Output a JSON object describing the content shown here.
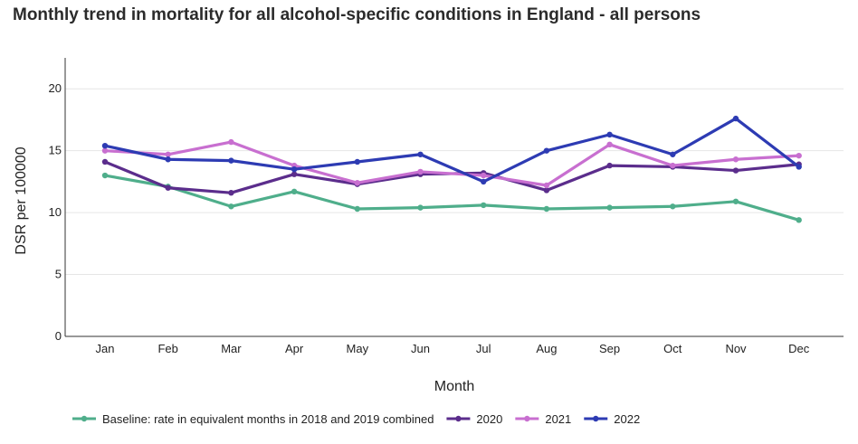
{
  "title": "Monthly trend in mortality for all alcohol-specific conditions in England - all persons",
  "chart_data": {
    "type": "line",
    "title": "Monthly trend in mortality for all alcohol-specific conditions in England - all persons",
    "xlabel": "Month",
    "ylabel": "DSR per 100000",
    "ylim": [
      0,
      22.5
    ],
    "yticks": [
      0,
      5,
      10,
      15,
      20
    ],
    "grid": true,
    "legend_position": "bottom",
    "categories": [
      "Jan",
      "Feb",
      "Mar",
      "Apr",
      "May",
      "Jun",
      "Jul",
      "Aug",
      "Sep",
      "Oct",
      "Nov",
      "Dec"
    ],
    "series": [
      {
        "name": "Baseline: rate in equivalent months in 2018 and 2019 combined",
        "color": "#4fae8b",
        "values": [
          13.0,
          12.1,
          10.5,
          11.7,
          10.3,
          10.4,
          10.6,
          10.3,
          10.4,
          10.5,
          10.9,
          9.4
        ]
      },
      {
        "name": "2020",
        "color": "#5b2d8c",
        "values": [
          14.1,
          12.0,
          11.6,
          13.1,
          12.3,
          13.1,
          13.2,
          11.8,
          13.8,
          13.7,
          13.4,
          13.9
        ]
      },
      {
        "name": "2021",
        "color": "#c86fd0",
        "values": [
          15.0,
          14.7,
          15.7,
          13.8,
          12.4,
          13.3,
          13.0,
          12.2,
          15.5,
          13.8,
          14.3,
          14.6
        ]
      },
      {
        "name": "2022",
        "color": "#2d3bb3",
        "values": [
          15.4,
          14.3,
          14.2,
          13.5,
          14.1,
          14.7,
          12.5,
          15.0,
          16.3,
          14.7,
          17.6,
          13.7
        ]
      }
    ]
  }
}
